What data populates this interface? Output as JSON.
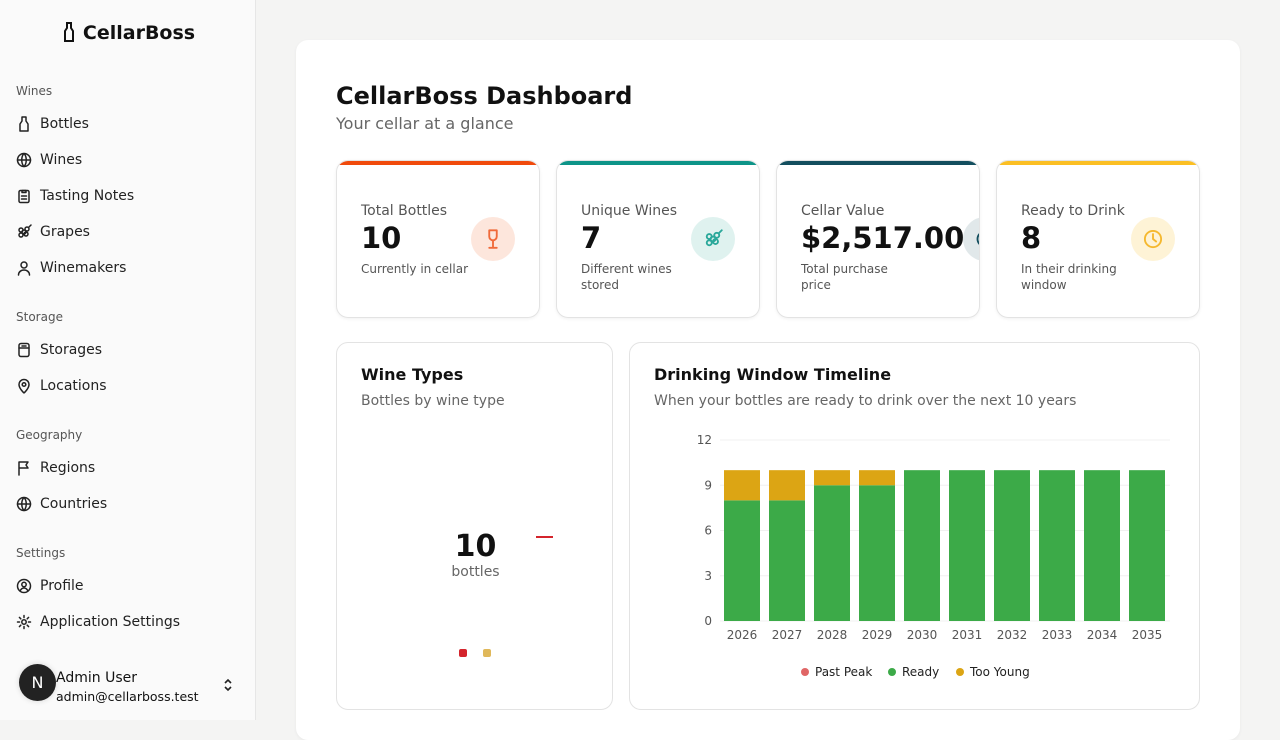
{
  "app": {
    "name": "CellarBoss"
  },
  "sidebar": {
    "groups": [
      {
        "label": "Wines",
        "items": [
          {
            "label": "Bottles",
            "icon": "bottle-icon"
          },
          {
            "label": "Wines",
            "icon": "globe-icon"
          },
          {
            "label": "Tasting Notes",
            "icon": "clipboard-icon"
          },
          {
            "label": "Grapes",
            "icon": "grapes-icon"
          },
          {
            "label": "Winemakers",
            "icon": "user-icon"
          }
        ]
      },
      {
        "label": "Storage",
        "items": [
          {
            "label": "Storages",
            "icon": "storage-icon"
          },
          {
            "label": "Locations",
            "icon": "map-pin-icon"
          }
        ]
      },
      {
        "label": "Geography",
        "items": [
          {
            "label": "Regions",
            "icon": "flag-icon"
          },
          {
            "label": "Countries",
            "icon": "globe-icon"
          }
        ]
      },
      {
        "label": "Settings",
        "items": [
          {
            "label": "Profile",
            "icon": "user-circle-icon"
          },
          {
            "label": "Application Settings",
            "icon": "gear-icon"
          }
        ]
      }
    ],
    "user": {
      "initial": "N",
      "name": "Admin User",
      "email": "admin@cellarboss.test"
    }
  },
  "header": {
    "title": "CellarBoss Dashboard",
    "subtitle": "Your cellar at a glance"
  },
  "stats": [
    {
      "label": "Total Bottles",
      "value": "10",
      "desc": "Currently in cellar",
      "color": "#f04a0c",
      "icon": "wine-glass-icon"
    },
    {
      "label": "Unique Wines",
      "value": "7",
      "desc": "Different wines stored",
      "color": "#0d9488",
      "icon": "grapes-icon"
    },
    {
      "label": "Cellar Value",
      "value": "$2,517.00",
      "desc": "Total purchase price",
      "color": "#134e5e",
      "icon": "coins-icon"
    },
    {
      "label": "Ready to Drink",
      "value": "8",
      "desc": "In their drinking window",
      "color": "#fbbf24",
      "icon": "clock-icon"
    }
  ],
  "wine_types": {
    "title": "Wine Types",
    "subtitle": "Bottles by wine type",
    "total": "10",
    "total_label": "bottles",
    "legend_colors": [
      "#d4242c",
      "#e0b85a"
    ]
  },
  "chart_data": {
    "type": "bar",
    "stacked": true,
    "title": "Drinking Window Timeline",
    "subtitle": "When your bottles are ready to drink over the next 10 years",
    "categories": [
      "2026",
      "2027",
      "2028",
      "2029",
      "2030",
      "2031",
      "2032",
      "2033",
      "2034",
      "2035"
    ],
    "ylim": [
      0,
      12
    ],
    "yticks": [
      "0",
      "3",
      "6",
      "9",
      "12"
    ],
    "grid": true,
    "legend": "bottom",
    "series": [
      {
        "name": "Past Peak",
        "color": "#e06666",
        "values": [
          0,
          0,
          0,
          0,
          0,
          0,
          0,
          0,
          0,
          0
        ]
      },
      {
        "name": "Ready",
        "color": "#3caa48",
        "values": [
          8,
          8,
          9,
          9,
          10,
          10,
          10,
          10,
          10,
          10
        ]
      },
      {
        "name": "Too Young",
        "color": "#dca514",
        "values": [
          2,
          2,
          1,
          1,
          0,
          0,
          0,
          0,
          0,
          0
        ]
      }
    ]
  }
}
